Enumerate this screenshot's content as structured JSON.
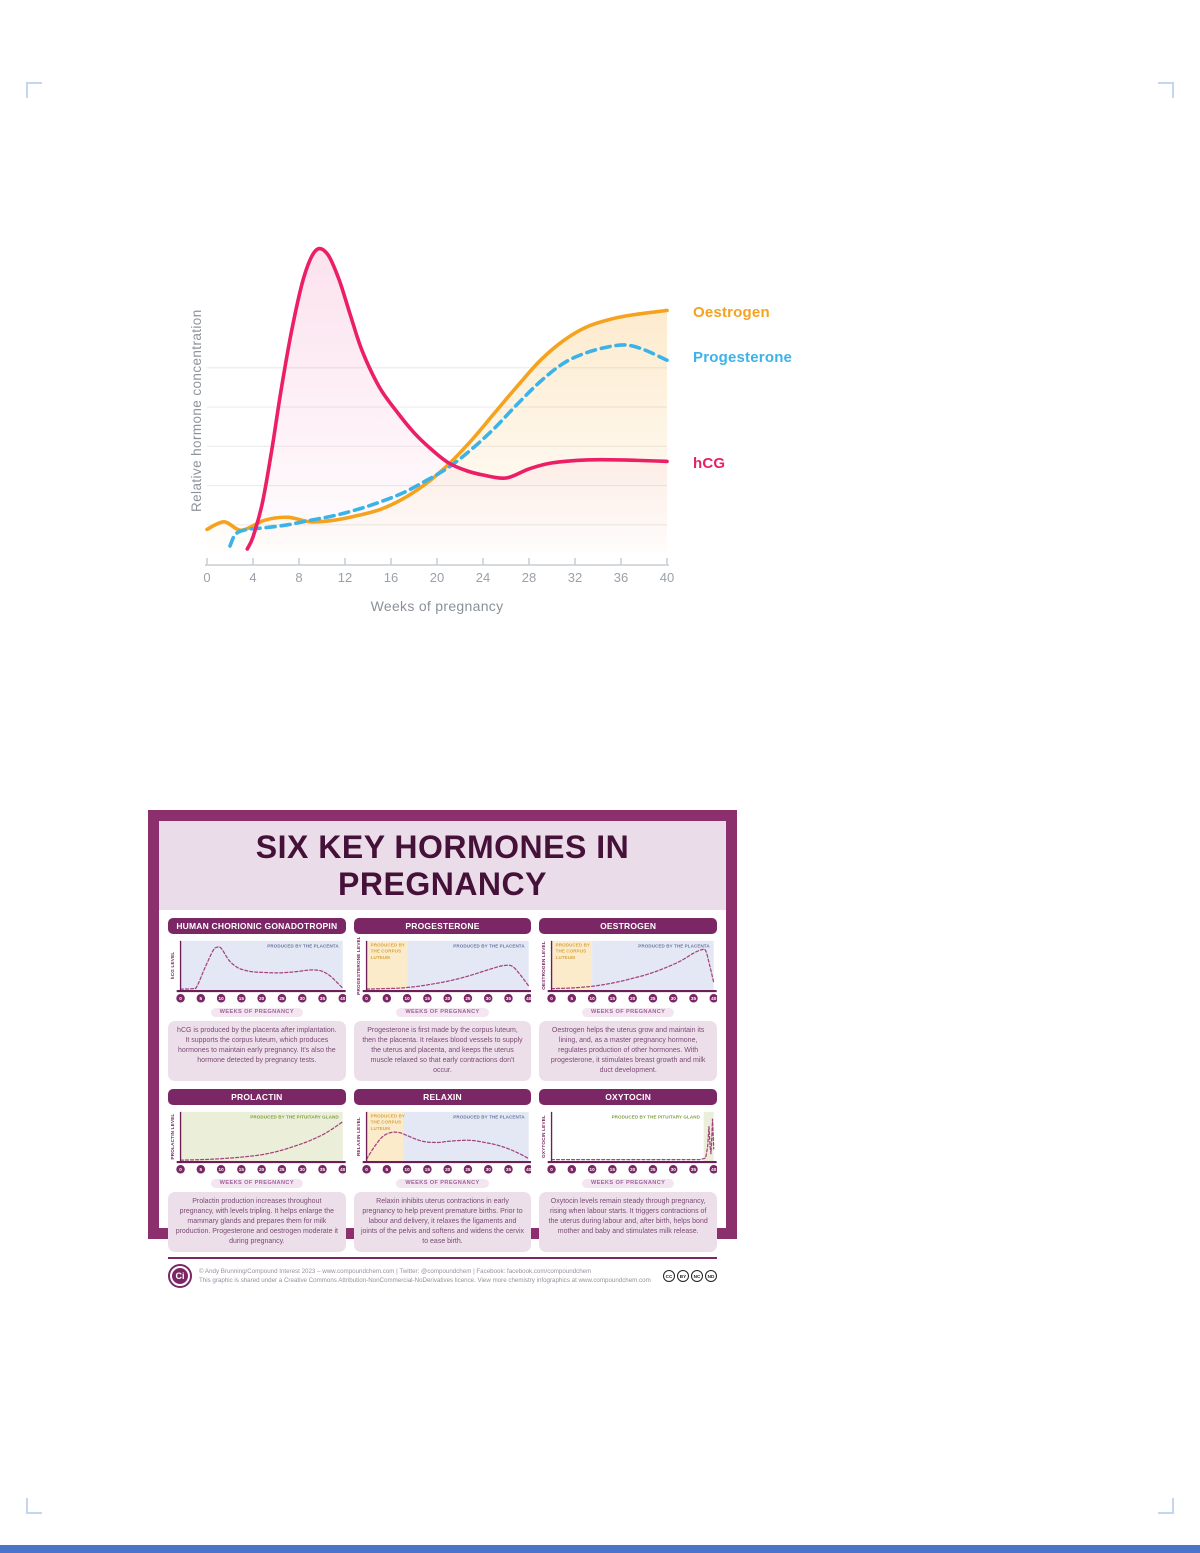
{
  "colors": {
    "oestrogen": "#F5A31F",
    "progesterone": "#3BB3E8",
    "hcg": "#EC1E66",
    "poster_border": "#8C2F6D",
    "poster_header": "#7C2765",
    "poster_title_text": "#451139",
    "mini_line": "#A6437D",
    "chart_blue_bg": "#E4E8F4",
    "chart_cream_bg": "#FBEBCB",
    "chart_green_bg": "#EBEFD9"
  },
  "chart_data": [
    {
      "type": "line",
      "title": "",
      "xlabel": "Weeks of pregnancy",
      "ylabel": "Relative hormone concentration",
      "xlim": [
        0,
        40
      ],
      "x_ticks": [
        0,
        4,
        8,
        12,
        16,
        20,
        24,
        28,
        32,
        36,
        40
      ],
      "gridlines": [
        0.09,
        0.22,
        0.35,
        0.48,
        0.61
      ],
      "legend_position": "right",
      "series": [
        {
          "name": "Oestrogen",
          "color": "#F5A31F",
          "width": 3.6,
          "fill": "#F5A31F",
          "fill_opacity": 0.22,
          "points": [
            [
              0,
              0.075
            ],
            [
              1.5,
              0.1
            ],
            [
              3,
              0.072
            ],
            [
              5,
              0.105
            ],
            [
              7,
              0.115
            ],
            [
              9,
              0.1
            ],
            [
              11,
              0.105
            ],
            [
              13,
              0.12
            ],
            [
              15,
              0.14
            ],
            [
              17,
              0.175
            ],
            [
              19,
              0.225
            ],
            [
              21,
              0.29
            ],
            [
              23,
              0.37
            ],
            [
              25,
              0.46
            ],
            [
              27,
              0.55
            ],
            [
              29,
              0.635
            ],
            [
              31,
              0.7
            ],
            [
              33,
              0.745
            ],
            [
              35,
              0.77
            ],
            [
              37,
              0.785
            ],
            [
              40,
              0.8
            ]
          ]
        },
        {
          "name": "Progesterone",
          "color": "#3BB3E8",
          "width": 3.6,
          "dash": "9,6",
          "points": [
            [
              2,
              0.02
            ],
            [
              2.5,
              0.06
            ],
            [
              3.5,
              0.075
            ],
            [
              5,
              0.08
            ],
            [
              7,
              0.09
            ],
            [
              9,
              0.105
            ],
            [
              11,
              0.12
            ],
            [
              13,
              0.14
            ],
            [
              15,
              0.165
            ],
            [
              17,
              0.195
            ],
            [
              19,
              0.235
            ],
            [
              21,
              0.28
            ],
            [
              23,
              0.34
            ],
            [
              25,
              0.41
            ],
            [
              27,
              0.49
            ],
            [
              29,
              0.565
            ],
            [
              31,
              0.625
            ],
            [
              33,
              0.66
            ],
            [
              35,
              0.68
            ],
            [
              36.5,
              0.685
            ],
            [
              38,
              0.67
            ],
            [
              40,
              0.635
            ]
          ]
        },
        {
          "name": "hCG",
          "color": "#EC1E66",
          "width": 3.6,
          "fill": "#E83E8C",
          "fill_opacity": 0.15,
          "points": [
            [
              3.5,
              0.01
            ],
            [
              4,
              0.05
            ],
            [
              4.8,
              0.16
            ],
            [
              5.6,
              0.33
            ],
            [
              6.5,
              0.55
            ],
            [
              7.5,
              0.76
            ],
            [
              8.5,
              0.92
            ],
            [
              9.5,
              1.0
            ],
            [
              10.5,
              0.985
            ],
            [
              11.5,
              0.9
            ],
            [
              12.5,
              0.78
            ],
            [
              13.5,
              0.665
            ],
            [
              15,
              0.545
            ],
            [
              16.5,
              0.465
            ],
            [
              18,
              0.395
            ],
            [
              19.5,
              0.34
            ],
            [
              21,
              0.295
            ],
            [
              22.5,
              0.27
            ],
            [
              24,
              0.255
            ],
            [
              26,
              0.245
            ],
            [
              28,
              0.275
            ],
            [
              30,
              0.295
            ],
            [
              33,
              0.305
            ],
            [
              36,
              0.305
            ],
            [
              40,
              0.3
            ]
          ]
        }
      ]
    },
    {
      "type": "line",
      "name": "hCG mini",
      "ylabel": "hCG LEVEL",
      "xlim": [
        0,
        40
      ],
      "x_ticks": [
        0,
        5,
        10,
        15,
        20,
        25,
        30,
        35,
        40
      ],
      "regions": [
        {
          "from": 0,
          "to": 40,
          "color": "#E4E8F4",
          "label": {
            "lines": [
              "PRODUCED BY THE PLACENTA"
            ],
            "x": 39,
            "y": 11,
            "anchor": "end",
            "color": "#66779E"
          }
        }
      ],
      "series": [
        {
          "name": "hCG",
          "color": "#A6437D",
          "width": 1.3,
          "dash": "3,2.2",
          "points": [
            [
              0,
              0.02
            ],
            [
              3,
              0.03
            ],
            [
              4,
              0.07
            ],
            [
              6,
              0.45
            ],
            [
              8,
              0.8
            ],
            [
              9,
              0.87
            ],
            [
              10,
              0.85
            ],
            [
              12,
              0.6
            ],
            [
              14,
              0.46
            ],
            [
              16,
              0.4
            ],
            [
              18,
              0.37
            ],
            [
              20,
              0.36
            ],
            [
              24,
              0.35
            ],
            [
              28,
              0.37
            ],
            [
              31,
              0.4
            ],
            [
              33,
              0.41
            ],
            [
              35,
              0.38
            ],
            [
              37,
              0.28
            ],
            [
              39,
              0.12
            ],
            [
              40,
              0.04
            ]
          ]
        }
      ]
    },
    {
      "type": "line",
      "name": "Progesterone mini",
      "ylabel": "PROGESTERONE LEVEL",
      "xlim": [
        0,
        40
      ],
      "x_ticks": [
        0,
        5,
        10,
        15,
        20,
        25,
        30,
        35,
        40
      ],
      "regions": [
        {
          "from": 0,
          "to": 10,
          "color": "#FBEBCB",
          "label": {
            "lines": [
              "PRODUCED BY",
              "THE CORPUS",
              "LUTEUM"
            ],
            "x": 1,
            "y": 10,
            "anchor": "start",
            "color": "#D8A53F"
          }
        },
        {
          "from": 10,
          "to": 40,
          "color": "#E4E8F4",
          "label": {
            "lines": [
              "PRODUCED BY THE PLACENTA"
            ],
            "x": 39,
            "y": 11,
            "anchor": "end",
            "color": "#66779E"
          }
        }
      ],
      "series": [
        {
          "name": "Progesterone",
          "color": "#A6437D",
          "width": 1.3,
          "dash": "3,2.2",
          "points": [
            [
              0,
              0.02
            ],
            [
              4,
              0.03
            ],
            [
              8,
              0.04
            ],
            [
              12,
              0.07
            ],
            [
              16,
              0.12
            ],
            [
              20,
              0.18
            ],
            [
              24,
              0.26
            ],
            [
              28,
              0.36
            ],
            [
              31,
              0.44
            ],
            [
              34,
              0.5
            ],
            [
              36,
              0.48
            ],
            [
              38,
              0.3
            ],
            [
              40,
              0.08
            ]
          ]
        }
      ]
    },
    {
      "type": "line",
      "name": "Oestrogen mini",
      "ylabel": "OESTROGEN LEVEL",
      "xlim": [
        0,
        40
      ],
      "x_ticks": [
        0,
        5,
        10,
        15,
        20,
        25,
        30,
        35,
        40
      ],
      "regions": [
        {
          "from": 0,
          "to": 10,
          "color": "#FBEBCB",
          "label": {
            "lines": [
              "PRODUCED BY",
              "THE CORPUS",
              "LUTEUM"
            ],
            "x": 1,
            "y": 10,
            "anchor": "start",
            "color": "#D8A53F"
          }
        },
        {
          "from": 10,
          "to": 40,
          "color": "#E4E8F4",
          "label": {
            "lines": [
              "PRODUCED BY THE PLACENTA"
            ],
            "x": 39,
            "y": 11,
            "anchor": "end",
            "color": "#66779E"
          }
        }
      ],
      "series": [
        {
          "name": "Oestrogen",
          "color": "#A6437D",
          "width": 1.3,
          "dash": "3,2.2",
          "points": [
            [
              0,
              0.03
            ],
            [
              4,
              0.04
            ],
            [
              8,
              0.06
            ],
            [
              12,
              0.1
            ],
            [
              16,
              0.16
            ],
            [
              20,
              0.24
            ],
            [
              24,
              0.33
            ],
            [
              28,
              0.45
            ],
            [
              32,
              0.6
            ],
            [
              35,
              0.75
            ],
            [
              37,
              0.82
            ],
            [
              38,
              0.8
            ],
            [
              39,
              0.5
            ],
            [
              40,
              0.15
            ]
          ]
        }
      ]
    },
    {
      "type": "line",
      "name": "Prolactin mini",
      "ylabel": "PROLACTIN LEVEL",
      "xlim": [
        0,
        40
      ],
      "x_ticks": [
        0,
        5,
        10,
        15,
        20,
        25,
        30,
        35,
        40
      ],
      "regions": [
        {
          "from": 0,
          "to": 40,
          "color": "#EBEFD9",
          "label": {
            "lines": [
              "PRODUCED BY THE PITUITARY GLAND"
            ],
            "x": 39,
            "y": 11,
            "anchor": "end",
            "color": "#7E9C40"
          }
        }
      ],
      "series": [
        {
          "name": "Prolactin",
          "color": "#A6437D",
          "width": 1.3,
          "dash": "3,2.2",
          "points": [
            [
              0,
              0.02
            ],
            [
              5,
              0.03
            ],
            [
              10,
              0.05
            ],
            [
              15,
              0.08
            ],
            [
              20,
              0.13
            ],
            [
              24,
              0.2
            ],
            [
              28,
              0.3
            ],
            [
              32,
              0.42
            ],
            [
              36,
              0.58
            ],
            [
              40,
              0.8
            ]
          ]
        }
      ]
    },
    {
      "type": "line",
      "name": "Relaxin mini",
      "ylabel": "RELAXIN LEVEL",
      "xlim": [
        0,
        40
      ],
      "x_ticks": [
        0,
        5,
        10,
        15,
        20,
        25,
        30,
        35,
        40
      ],
      "regions": [
        {
          "from": 0,
          "to": 9,
          "color": "#FBEBCB",
          "label": {
            "lines": [
              "PRODUCED BY",
              "THE CORPUS",
              "LUTEUM"
            ],
            "x": 1,
            "y": 10,
            "anchor": "start",
            "color": "#D8A53F"
          }
        },
        {
          "from": 9,
          "to": 40,
          "color": "#E4E8F4",
          "label": {
            "lines": [
              "PRODUCED BY THE PLACENTA"
            ],
            "x": 39,
            "y": 11,
            "anchor": "end",
            "color": "#66779E"
          }
        }
      ],
      "series": [
        {
          "name": "Relaxin",
          "color": "#A6437D",
          "width": 1.3,
          "dash": "3,2.2",
          "points": [
            [
              0,
              0.04
            ],
            [
              2,
              0.3
            ],
            [
              4,
              0.5
            ],
            [
              6,
              0.58
            ],
            [
              8,
              0.58
            ],
            [
              10,
              0.52
            ],
            [
              12,
              0.45
            ],
            [
              14,
              0.4
            ],
            [
              16,
              0.38
            ],
            [
              18,
              0.38
            ],
            [
              20,
              0.4
            ],
            [
              23,
              0.42
            ],
            [
              26,
              0.42
            ],
            [
              29,
              0.38
            ],
            [
              32,
              0.33
            ],
            [
              35,
              0.25
            ],
            [
              38,
              0.14
            ],
            [
              40,
              0.05
            ]
          ]
        }
      ]
    },
    {
      "type": "line",
      "name": "Oxytocin mini",
      "ylabel": "OXYTOCIN LEVEL",
      "xlim": [
        0,
        40
      ],
      "x_ticks": [
        0,
        5,
        10,
        15,
        20,
        25,
        30,
        35,
        40
      ],
      "regions": [
        {
          "from": 37.5,
          "to": 40,
          "color": "#EBEFD9",
          "label": {
            "lines": [
              "PRODUCED BY THE PITUITARY GLAND"
            ],
            "x": 36.6,
            "y": 11,
            "anchor": "end",
            "color": "#7E9C40"
          }
        }
      ],
      "series": [
        {
          "name": "Oxytocin",
          "color": "#A6437D",
          "width": 1.3,
          "dash": "3,2.2",
          "smooth": false,
          "points": [
            [
              0,
              0.03
            ],
            [
              36.5,
              0.03
            ],
            [
              38,
              0.06
            ],
            [
              38.5,
              0.3
            ],
            [
              38.8,
              0.7
            ],
            [
              39.1,
              0.3
            ],
            [
              39.3,
              0.15
            ],
            [
              39.5,
              0.45
            ],
            [
              39.7,
              0.85
            ],
            [
              40,
              0.25
            ]
          ]
        }
      ]
    }
  ],
  "poster": {
    "title": "SIX KEY HORMONES IN PREGNANCY",
    "panels": [
      {
        "title": "HUMAN CHORIONIC GONADOTROPIN",
        "xlabel": "WEEKS OF PREGNANCY",
        "description": "hCG is produced by the placenta after implantation. It supports the corpus luteum, which produces hormones to maintain early pregnancy. It's also the hormone detected by pregnancy tests."
      },
      {
        "title": "PROGESTERONE",
        "xlabel": "WEEKS OF PREGNANCY",
        "description": "Progesterone is first made by the corpus luteum, then the placenta. It relaxes blood vessels to supply the uterus and placenta, and keeps the uterus muscle relaxed so that early contractions don't occur."
      },
      {
        "title": "OESTROGEN",
        "xlabel": "WEEKS OF PREGNANCY",
        "description": "Oestrogen helps the uterus grow and maintain its lining, and, as a master pregnancy hormone, regulates production of other hormones. With progesterone, it stimulates breast growth and milk duct development."
      },
      {
        "title": "PROLACTIN",
        "xlabel": "WEEKS OF PREGNANCY",
        "description": "Prolactin production increases throughout pregnancy, with levels tripling. It helps enlarge the mammary glands and prepares them for milk production. Progesterone and oestrogen moderate it during pregnancy."
      },
      {
        "title": "RELAXIN",
        "xlabel": "WEEKS OF PREGNANCY",
        "description": "Relaxin inhibits uterus contractions in early pregnancy to help prevent premature births. Prior to labour and delivery, it relaxes the ligaments and joints of the pelvis and softens and widens the cervix to ease birth."
      },
      {
        "title": "OXYTOCIN",
        "xlabel": "WEEKS OF PREGNANCY",
        "description": "Oxytocin levels remain steady through pregnancy, rising when labour starts. It triggers contractions of the uterus during labour and, after birth, helps bond mother and baby and stimulates milk release."
      }
    ],
    "footer": {
      "logo": "Ci",
      "line1": "© Andy Brunning/Compound Interest 2023 – www.compoundchem.com | Twitter: @compoundchem | Facebook: facebook.com/compoundchem",
      "line2": "This graphic is shared under a Creative Commons Attribution-NonCommercial-NoDerivatives licence. View more chemistry infographics at www.compoundchem.com",
      "cc_badges": [
        "CC",
        "BY",
        "NC",
        "ND"
      ]
    }
  }
}
